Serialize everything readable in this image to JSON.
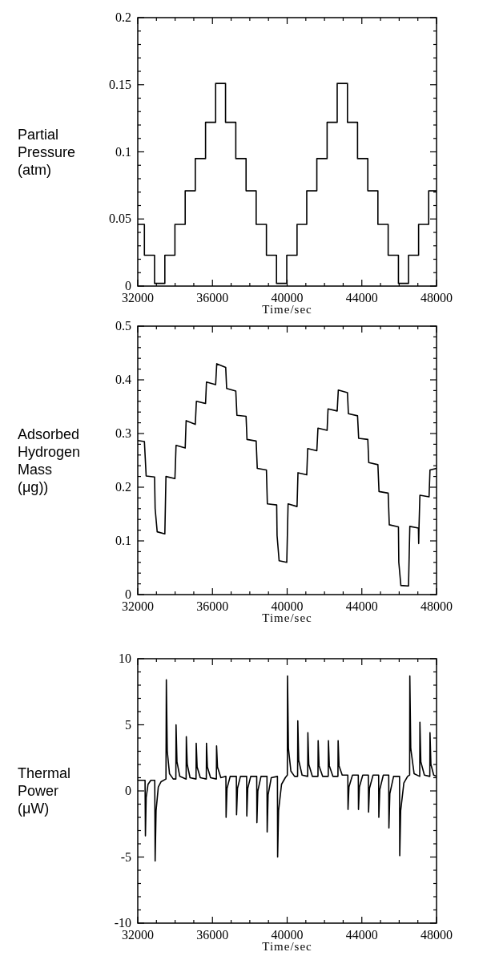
{
  "chart_data": [
    {
      "type": "step",
      "ylabel": "Partial\nPressure\n(atm)",
      "xlabel": "Time/sec",
      "color": "#000000",
      "xlim": [
        32000,
        48000
      ],
      "ylim": [
        0,
        0.2
      ],
      "xticks": [
        32000,
        {
          "value": 33000,
          "label": null
        },
        {
          "value": 34000,
          "label": null
        },
        {
          "value": 35000,
          "label": null
        },
        36000,
        {
          "value": 37000,
          "label": null
        },
        {
          "value": 38000,
          "label": null
        },
        {
          "value": 39000,
          "label": null
        },
        40000,
        {
          "value": 41000,
          "label": null
        },
        {
          "value": 42000,
          "label": null
        },
        {
          "value": 43000,
          "label": null
        },
        44000,
        {
          "value": 45000,
          "label": null
        },
        {
          "value": 46000,
          "label": null
        },
        {
          "value": 47000,
          "label": null
        },
        48000
      ],
      "yticks": [
        0,
        {
          "value": 0.01,
          "label": null
        },
        {
          "value": 0.02,
          "label": null
        },
        {
          "value": 0.03,
          "label": null
        },
        {
          "value": 0.04,
          "label": null
        },
        0.05,
        {
          "value": 0.06,
          "label": null
        },
        {
          "value": 0.07,
          "label": null
        },
        {
          "value": 0.08,
          "label": null
        },
        {
          "value": 0.09,
          "label": null
        },
        0.1,
        {
          "value": 0.11,
          "label": null
        },
        {
          "value": 0.12,
          "label": null
        },
        {
          "value": 0.13,
          "label": null
        },
        {
          "value": 0.14,
          "label": null
        },
        0.15,
        {
          "value": 0.16,
          "label": null
        },
        {
          "value": 0.17,
          "label": null
        },
        {
          "value": 0.18,
          "label": null
        },
        {
          "value": 0.19,
          "label": null
        },
        0.2
      ],
      "x": [
        32000,
        32355,
        32900,
        33450,
        33990,
        34540,
        35080,
        35630,
        36170,
        36700,
        37250,
        37800,
        38340,
        38890,
        39430,
        39980,
        40530,
        41050,
        41590,
        42140,
        42680,
        43230,
        43770,
        44320,
        44860,
        45410,
        45960,
        46500,
        47040,
        47580,
        48000
      ],
      "values": [
        0.046,
        0.023,
        0.002,
        0.023,
        0.046,
        0.071,
        0.095,
        0.122,
        0.151,
        0.122,
        0.095,
        0.071,
        0.046,
        0.023,
        0.002,
        0.023,
        0.046,
        0.071,
        0.095,
        0.122,
        0.151,
        0.122,
        0.095,
        0.071,
        0.046,
        0.023,
        0.002,
        0.023,
        0.046,
        0.071,
        0.071
      ]
    },
    {
      "type": "line",
      "ylabel": "Adsorbed\nHydrogen\nMass\n(μg))",
      "xlabel": "Time/sec",
      "color": "#000000",
      "xlim": [
        32000,
        48000
      ],
      "ylim": [
        0,
        0.5
      ],
      "xticks": [
        32000,
        {
          "value": 33000,
          "label": null
        },
        {
          "value": 34000,
          "label": null
        },
        {
          "value": 35000,
          "label": null
        },
        36000,
        {
          "value": 37000,
          "label": null
        },
        {
          "value": 38000,
          "label": null
        },
        {
          "value": 39000,
          "label": null
        },
        40000,
        {
          "value": 41000,
          "label": null
        },
        {
          "value": 42000,
          "label": null
        },
        {
          "value": 43000,
          "label": null
        },
        44000,
        {
          "value": 45000,
          "label": null
        },
        {
          "value": 46000,
          "label": null
        },
        {
          "value": 47000,
          "label": null
        },
        48000
      ],
      "yticks": [
        0,
        {
          "value": 0.02,
          "label": null
        },
        {
          "value": 0.04,
          "label": null
        },
        {
          "value": 0.06,
          "label": null
        },
        {
          "value": 0.08,
          "label": null
        },
        0.1,
        {
          "value": 0.12,
          "label": null
        },
        {
          "value": 0.14,
          "label": null
        },
        {
          "value": 0.16,
          "label": null
        },
        {
          "value": 0.18,
          "label": null
        },
        0.2,
        {
          "value": 0.22,
          "label": null
        },
        {
          "value": 0.24,
          "label": null
        },
        {
          "value": 0.26,
          "label": null
        },
        {
          "value": 0.28,
          "label": null
        },
        0.3,
        {
          "value": 0.32,
          "label": null
        },
        {
          "value": 0.34,
          "label": null
        },
        {
          "value": 0.36,
          "label": null
        },
        {
          "value": 0.38,
          "label": null
        },
        0.4,
        {
          "value": 0.42,
          "label": null
        },
        {
          "value": 0.44,
          "label": null
        },
        {
          "value": 0.46,
          "label": null
        },
        {
          "value": 0.48,
          "label": null
        },
        0.5
      ],
      "x": [
        32000,
        32355,
        32450,
        32900,
        32930,
        33040,
        33450,
        33510,
        33990,
        34050,
        34540,
        34590,
        35080,
        35140,
        35630,
        35680,
        36170,
        36230,
        36710,
        36760,
        37250,
        37310,
        37800,
        37850,
        38340,
        38400,
        38890,
        38940,
        39440,
        39460,
        39570,
        39980,
        40050,
        40530,
        40580,
        41050,
        41100,
        41590,
        41650,
        42140,
        42190,
        42680,
        42740,
        43230,
        43280,
        43770,
        43830,
        44320,
        44370,
        44860,
        44920,
        45410,
        45470,
        45960,
        45980,
        46090,
        46500,
        46570,
        47030,
        47045,
        47060,
        47110,
        47600,
        47650,
        48000
      ],
      "values": [
        0.287,
        0.285,
        0.221,
        0.219,
        0.16,
        0.117,
        0.113,
        0.22,
        0.216,
        0.278,
        0.273,
        0.324,
        0.317,
        0.36,
        0.356,
        0.396,
        0.391,
        0.43,
        0.423,
        0.384,
        0.379,
        0.334,
        0.332,
        0.289,
        0.286,
        0.235,
        0.232,
        0.169,
        0.167,
        0.11,
        0.063,
        0.06,
        0.169,
        0.164,
        0.227,
        0.223,
        0.272,
        0.268,
        0.31,
        0.306,
        0.346,
        0.342,
        0.381,
        0.376,
        0.337,
        0.333,
        0.291,
        0.289,
        0.246,
        0.242,
        0.192,
        0.189,
        0.13,
        0.126,
        0.06,
        0.017,
        0.016,
        0.127,
        0.124,
        0.095,
        0.124,
        0.185,
        0.182,
        0.232,
        0.235
      ]
    },
    {
      "type": "line",
      "ylabel": "Thermal\nPower\n(μW)",
      "xlabel": "Time/sec",
      "color": "#000000",
      "xlim": [
        32000,
        48000
      ],
      "ylim": [
        -10,
        10
      ],
      "xticks": [
        32000,
        {
          "value": 33000,
          "label": null
        },
        {
          "value": 34000,
          "label": null
        },
        {
          "value": 35000,
          "label": null
        },
        36000,
        {
          "value": 37000,
          "label": null
        },
        {
          "value": 38000,
          "label": null
        },
        {
          "value": 39000,
          "label": null
        },
        40000,
        {
          "value": 41000,
          "label": null
        },
        {
          "value": 42000,
          "label": null
        },
        {
          "value": 43000,
          "label": null
        },
        44000,
        {
          "value": 45000,
          "label": null
        },
        {
          "value": 46000,
          "label": null
        },
        {
          "value": 47000,
          "label": null
        },
        48000
      ],
      "yticks": [
        -10,
        {
          "value": -9,
          "label": null
        },
        {
          "value": -8,
          "label": null
        },
        {
          "value": -7,
          "label": null
        },
        {
          "value": -6,
          "label": null
        },
        -5,
        {
          "value": -4,
          "label": null
        },
        {
          "value": -3,
          "label": null
        },
        {
          "value": -2,
          "label": null
        },
        {
          "value": -1,
          "label": null
        },
        0,
        {
          "value": 1,
          "label": null
        },
        {
          "value": 2,
          "label": null
        },
        {
          "value": 3,
          "label": null
        },
        {
          "value": 4,
          "label": null
        },
        5,
        {
          "value": 6,
          "label": null
        },
        {
          "value": 7,
          "label": null
        },
        {
          "value": 8,
          "label": null
        },
        {
          "value": 9,
          "label": null
        },
        10
      ],
      "x": [
        32000,
        32390,
        32410,
        32450,
        32550,
        32700,
        32910,
        32930,
        32980,
        33100,
        33250,
        33510,
        33530,
        33580,
        33700,
        33900,
        34040,
        34050,
        34100,
        34250,
        34590,
        34600,
        34650,
        34800,
        35120,
        35130,
        35180,
        35350,
        35670,
        35680,
        35730,
        35900,
        36210,
        36220,
        36270,
        36450,
        36720,
        36730,
        36780,
        36950,
        37280,
        37290,
        37340,
        37500,
        37830,
        37840,
        37890,
        38050,
        38370,
        38380,
        38430,
        38600,
        38920,
        38930,
        38980,
        39150,
        39480,
        39490,
        39540,
        39700,
        39900,
        40010,
        40020,
        40070,
        40200,
        40400,
        40560,
        40570,
        40620,
        40800,
        41100,
        41110,
        41160,
        41350,
        41650,
        41660,
        41710,
        41900,
        42200,
        42210,
        42260,
        42450,
        42720,
        42730,
        42780,
        42950,
        43250,
        43260,
        43310,
        43500,
        43810,
        43820,
        43870,
        44050,
        44350,
        44360,
        44410,
        44600,
        44900,
        44910,
        44960,
        45150,
        45440,
        45450,
        45500,
        45700,
        46020,
        46030,
        46080,
        46250,
        46450,
        46560,
        46570,
        46620,
        46800,
        47100,
        47110,
        47160,
        47350,
        47640,
        47650,
        47700,
        47850,
        48000
      ],
      "values": [
        0.8,
        0.8,
        -3.4,
        -0.5,
        0.5,
        0.8,
        0.8,
        -5.3,
        -1.5,
        0.3,
        0.7,
        0.9,
        8.4,
        3.0,
        1.3,
        0.9,
        0.9,
        5.0,
        2.2,
        1.1,
        0.9,
        4.1,
        2.0,
        1.0,
        0.9,
        3.6,
        1.8,
        1.0,
        0.9,
        3.6,
        1.8,
        1.0,
        0.9,
        3.4,
        1.8,
        1.0,
        1.1,
        -2.0,
        0.2,
        1.1,
        1.1,
        -1.8,
        0.2,
        1.1,
        1.1,
        -1.9,
        0.2,
        1.1,
        1.1,
        -2.4,
        0,
        1.1,
        1.1,
        -3.1,
        -0.3,
        1.0,
        1.1,
        -5.0,
        -1.5,
        0.5,
        1.0,
        1.2,
        8.7,
        3.2,
        1.5,
        1.1,
        1.1,
        5.3,
        2.3,
        1.2,
        1.1,
        4.4,
        2.0,
        1.1,
        1.1,
        3.8,
        1.9,
        1.1,
        1.1,
        3.8,
        1.9,
        1.1,
        1.1,
        3.8,
        1.9,
        1.2,
        1.2,
        -1.4,
        0.3,
        1.2,
        1.2,
        -1.4,
        0.3,
        1.2,
        1.2,
        -1.6,
        0.2,
        1.2,
        1.2,
        -2.0,
        0.1,
        1.2,
        1.2,
        -2.8,
        -0.2,
        1.1,
        1.1,
        -4.9,
        -1.5,
        0.6,
        1.1,
        1.2,
        8.7,
        3.2,
        1.3,
        1.1,
        5.2,
        2.2,
        1.2,
        1.1,
        4.4,
        2.0,
        1.2,
        1.1
      ]
    }
  ]
}
